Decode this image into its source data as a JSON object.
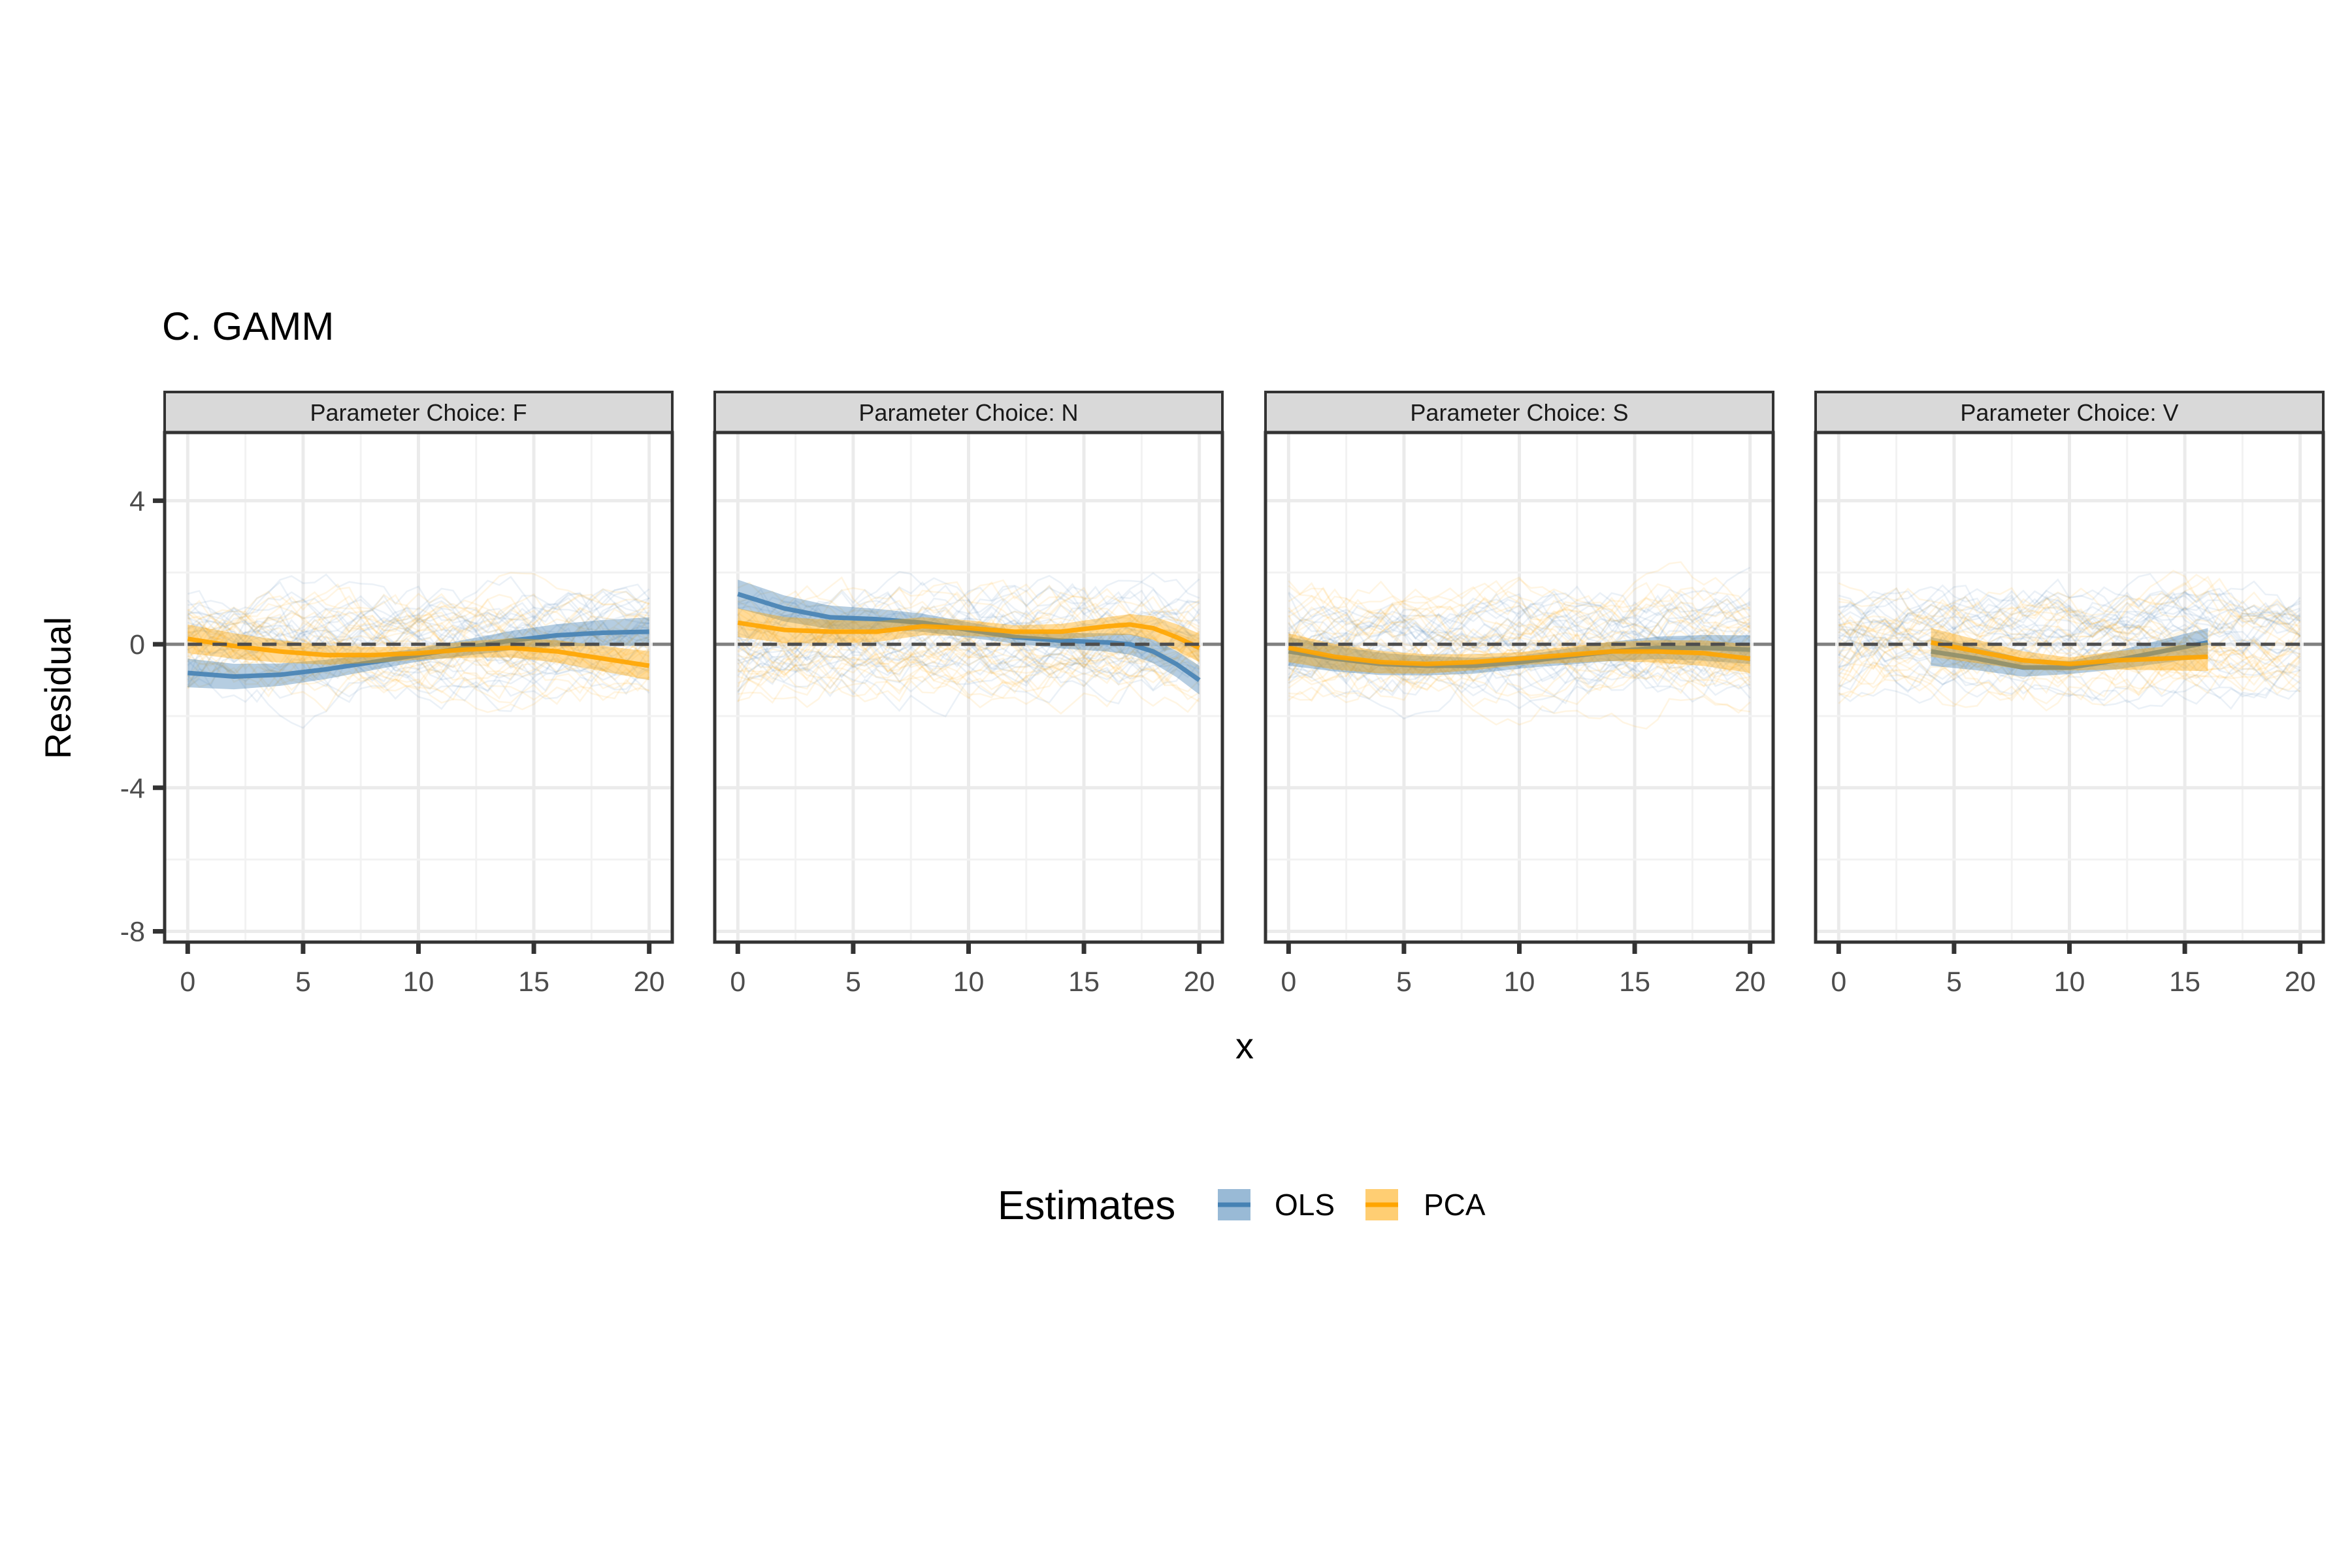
{
  "chart_data": {
    "type": "line",
    "title": "C. GAMM",
    "xlabel": "x",
    "ylabel": "Residual",
    "xlim": [
      -1,
      21
    ],
    "ylim": [
      -8.3,
      5.9
    ],
    "xticks": [
      "0",
      "5",
      "10",
      "15",
      "20"
    ],
    "yticks": [
      "4",
      "0",
      "-4",
      "-8"
    ],
    "reference_line": {
      "y": 0,
      "style": "dashed"
    },
    "grid": true,
    "legend": {
      "title": "Estimates",
      "position": "bottom",
      "entries": [
        {
          "name": "OLS",
          "color": "#4682B4"
        },
        {
          "name": "PCA",
          "color": "#FFA500"
        }
      ]
    },
    "facets": [
      {
        "label": "Parameter Choice: F",
        "series": [
          {
            "name": "OLS",
            "x": [
              0,
              2,
              4,
              6,
              8,
              10,
              12,
              14,
              16,
              18,
              20
            ],
            "values": [
              -0.8,
              -0.9,
              -0.85,
              -0.7,
              -0.5,
              -0.3,
              -0.1,
              0.1,
              0.25,
              0.32,
              0.35
            ]
          },
          {
            "name": "PCA",
            "x": [
              0,
              2,
              4,
              6,
              8,
              10,
              12,
              14,
              16,
              18,
              20
            ],
            "values": [
              0.15,
              -0.05,
              -0.2,
              -0.3,
              -0.3,
              -0.25,
              -0.15,
              -0.1,
              -0.2,
              -0.4,
              -0.6
            ]
          }
        ]
      },
      {
        "label": "Parameter Choice: N",
        "series": [
          {
            "name": "OLS",
            "x": [
              0,
              2,
              4,
              6,
              8,
              10,
              12,
              14,
              16,
              17,
              18,
              19,
              20
            ],
            "values": [
              1.4,
              1.0,
              0.75,
              0.7,
              0.6,
              0.4,
              0.2,
              0.1,
              0.05,
              0.0,
              -0.2,
              -0.55,
              -1.0
            ]
          },
          {
            "name": "PCA",
            "x": [
              0,
              2,
              4,
              6,
              8,
              10,
              12,
              14,
              16,
              17,
              18,
              19,
              20
            ],
            "values": [
              0.6,
              0.4,
              0.35,
              0.35,
              0.5,
              0.45,
              0.35,
              0.35,
              0.5,
              0.55,
              0.45,
              0.2,
              -0.1
            ]
          }
        ]
      },
      {
        "label": "Parameter Choice: S",
        "series": [
          {
            "name": "OLS",
            "x": [
              0,
              2,
              4,
              6,
              8,
              10,
              12,
              14,
              16,
              18,
              20
            ],
            "values": [
              -0.2,
              -0.4,
              -0.55,
              -0.6,
              -0.6,
              -0.5,
              -0.35,
              -0.2,
              -0.1,
              -0.1,
              -0.15
            ]
          },
          {
            "name": "PCA",
            "x": [
              0,
              2,
              4,
              6,
              8,
              10,
              12,
              14,
              16,
              18,
              20
            ],
            "values": [
              -0.1,
              -0.35,
              -0.5,
              -0.55,
              -0.5,
              -0.4,
              -0.3,
              -0.2,
              -0.2,
              -0.25,
              -0.4
            ]
          }
        ]
      },
      {
        "label": "Parameter Choice: V",
        "series": [
          {
            "name": "OLS",
            "x": [
              4,
              6,
              8,
              10,
              12,
              14,
              16
            ],
            "values": [
              -0.2,
              -0.4,
              -0.65,
              -0.65,
              -0.45,
              -0.2,
              0.05
            ]
          },
          {
            "name": "PCA",
            "x": [
              4,
              6,
              8,
              10,
              12,
              14,
              16
            ],
            "values": [
              0.05,
              -0.2,
              -0.45,
              -0.55,
              -0.45,
              -0.4,
              -0.35
            ]
          }
        ]
      }
    ]
  }
}
